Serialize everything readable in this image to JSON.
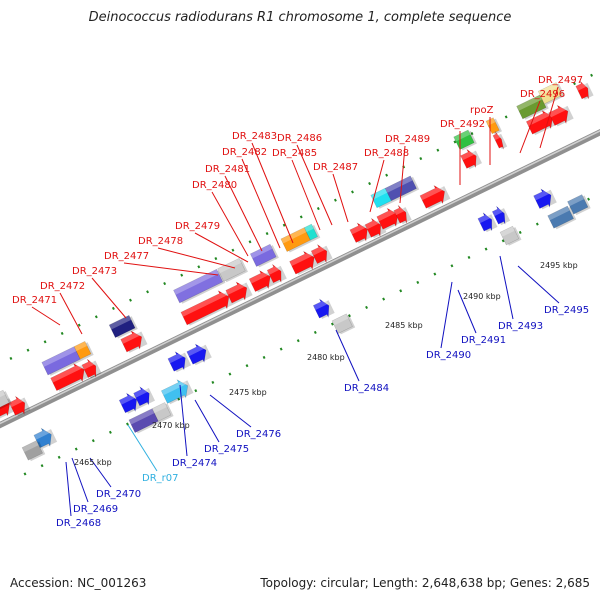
{
  "title": "Deinococcus radiodurans R1 chromosome 1, complete sequence",
  "footer": {
    "accession": "Accession: NC_001263",
    "summary": "Topology: circular; Length: 2,648,638 bp; Genes: 2,685"
  },
  "colors": {
    "upper_label": "#e01010",
    "lower_label": "#1010c0",
    "rna_label": "#30b0e0",
    "axis": "#909090",
    "dots": "#228822"
  },
  "scale_labels": [
    "2465 kbp",
    "2470 kbp",
    "2475 kbp",
    "2480 kbp",
    "2485 kbp",
    "2490 kbp",
    "2495 kbp"
  ],
  "upper_genes": [
    "DR_2471",
    "DR_2472",
    "DR_2473",
    "DR_2477",
    "DR_2478",
    "DR_2479",
    "DR_2480",
    "DR_2481",
    "DR_2482",
    "DR_2483",
    "DR_2485",
    "DR_2486",
    "DR_2487",
    "DR_2488",
    "DR_2489",
    "DR_2492",
    "rpoZ",
    "DR_2496",
    "DR_2497"
  ],
  "lower_genes": [
    "DR_2468",
    "DR_2469",
    "DR_2470",
    "DR_r07",
    "DR_2474",
    "DR_2475",
    "DR_2476",
    "DR_2484",
    "DR_2490",
    "DR_2491",
    "DR_2493",
    "DR_2495"
  ]
}
